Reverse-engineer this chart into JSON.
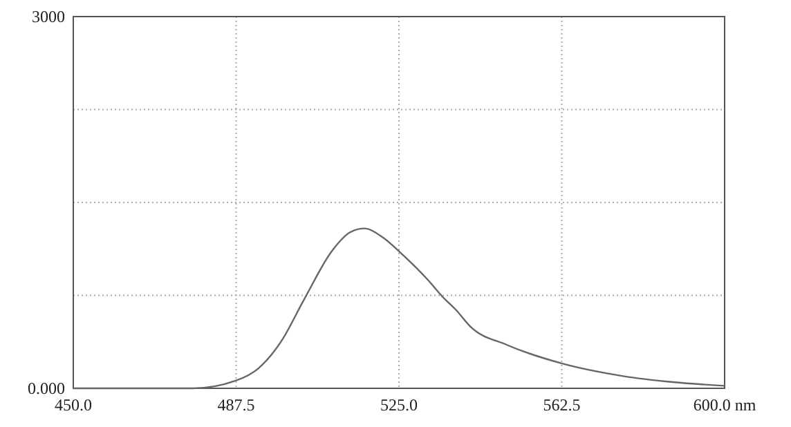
{
  "chart_data": {
    "type": "line",
    "x": [
      450,
      470,
      477.7,
      487.3,
      492.6,
      497.9,
      503.2,
      509.6,
      513.8,
      517.0,
      521.2,
      525.5,
      531.8,
      535.0,
      538.2,
      541.4,
      549.9,
      562.6,
      576.4,
      588.1,
      600
    ],
    "series": [
      {
        "color": "#666666",
        "values": [
          0,
          0,
          0,
          60,
          160,
          380,
          720,
          1110,
          1260,
          1290,
          1220,
          1090,
          870,
          740,
          630,
          500,
          350,
          200,
          100,
          50,
          20
        ]
      }
    ],
    "xlim": [
      450,
      600
    ],
    "xticks": [
      {
        "value": 450,
        "label": "450.0"
      },
      {
        "value": 487.5,
        "label": "487.5"
      },
      {
        "value": 525,
        "label": "525.0"
      },
      {
        "value": 562.5,
        "label": "562.5"
      },
      {
        "value": 600,
        "label": "600.0 nm"
      }
    ],
    "ylim": [
      0,
      3000
    ],
    "yticks": [
      {
        "value": 0,
        "label": "0.000"
      },
      {
        "value": 750,
        "label": null
      },
      {
        "value": 1500,
        "label": null
      },
      {
        "value": 2250,
        "label": null
      },
      3000
    ],
    "grid": true,
    "line_style": "solid",
    "marker": "none"
  }
}
